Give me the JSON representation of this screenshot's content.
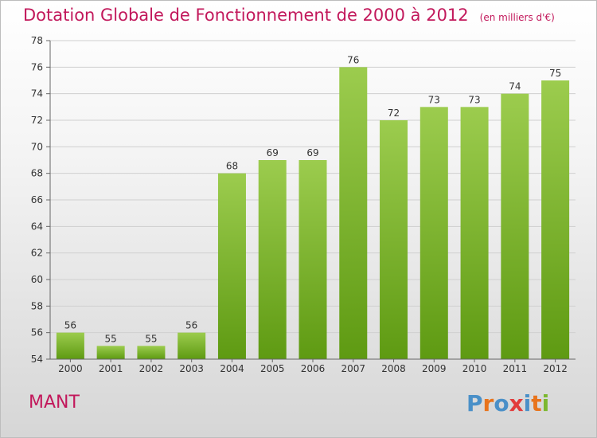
{
  "title": "Dotation Globale de Fonctionnement de 2000 à 2012",
  "unit": "(en milliers d'€)",
  "commune": "MANT",
  "logo": "Proxiti",
  "colors": {
    "bar_top": "#9ccc4e",
    "bar_bottom": "#5e9a12",
    "title": "#c2185b",
    "logo_letters": [
      "#4a90c8",
      "#e8741c",
      "#4a90c8",
      "#e23b3b",
      "#4a90c8",
      "#e8741c",
      "#7cb82f"
    ]
  },
  "chart_data": {
    "type": "bar",
    "categories": [
      "2000",
      "2001",
      "2002",
      "2003",
      "2004",
      "2005",
      "2006",
      "2007",
      "2008",
      "2009",
      "2010",
      "2011",
      "2012"
    ],
    "values": [
      56,
      55,
      55,
      56,
      68,
      69,
      69,
      76,
      72,
      73,
      73,
      74,
      75
    ],
    "ylim": [
      54,
      78
    ],
    "yticks": [
      54,
      56,
      58,
      60,
      62,
      64,
      66,
      68,
      70,
      72,
      74,
      76,
      78
    ],
    "grid": true,
    "data_labels": true
  }
}
